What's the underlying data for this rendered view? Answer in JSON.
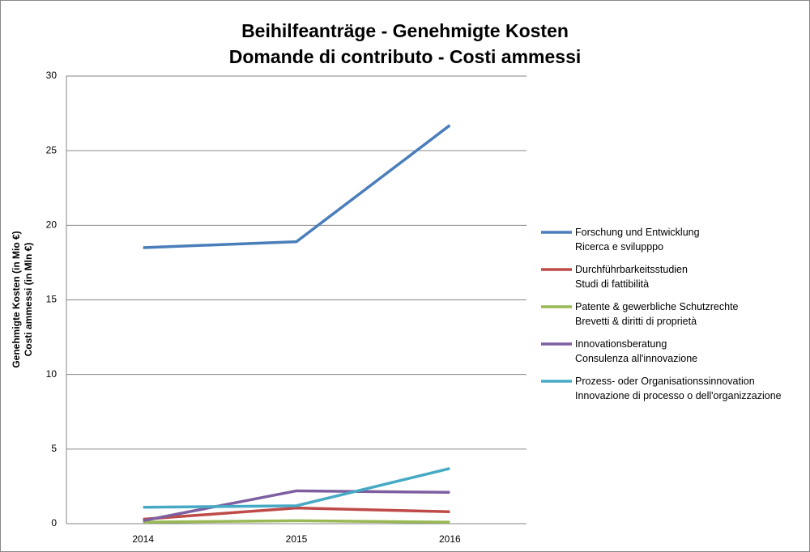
{
  "chart_data": {
    "type": "line",
    "title": "Beihilfeanträge - Genehmigte Kosten\nDomande di contributo - Costi ammessi",
    "y_label": "Genehmigte Kosten (in Mio €)\nCosti ammessi (in Mln €)",
    "categories": [
      "2014",
      "2015",
      "2016"
    ],
    "series": [
      {
        "name": "Forschung und Entwicklung\nRicerca e svilupppo",
        "color": "#4a7ebb",
        "values": [
          18.5,
          18.9,
          26.7
        ]
      },
      {
        "name": "Durchführbarkeitsstudien\nStudi di fattibilità",
        "color": "#be4b48",
        "values": [
          0.3,
          1.05,
          0.8
        ]
      },
      {
        "name": "Patente & gewerbliche Schutzrechte\nBrevetti & diritti di proprietà",
        "color": "#98b954",
        "values": [
          0.1,
          0.2,
          0.1
        ]
      },
      {
        "name": "Innovationsberatung\nConsulenza all'innovazione",
        "color": "#7d5fa0",
        "values": [
          0.2,
          2.2,
          2.1
        ]
      },
      {
        "name": "Prozess- oder Organisationssinnovation\nInnovazione di processo o dell'organizzazione",
        "color": "#46aac5",
        "values": [
          1.1,
          1.2,
          3.7
        ]
      }
    ],
    "ylim": [
      0,
      30
    ],
    "yticks": [
      0,
      5,
      10,
      15,
      20,
      25,
      30
    ],
    "grid": true,
    "legend": "right"
  }
}
